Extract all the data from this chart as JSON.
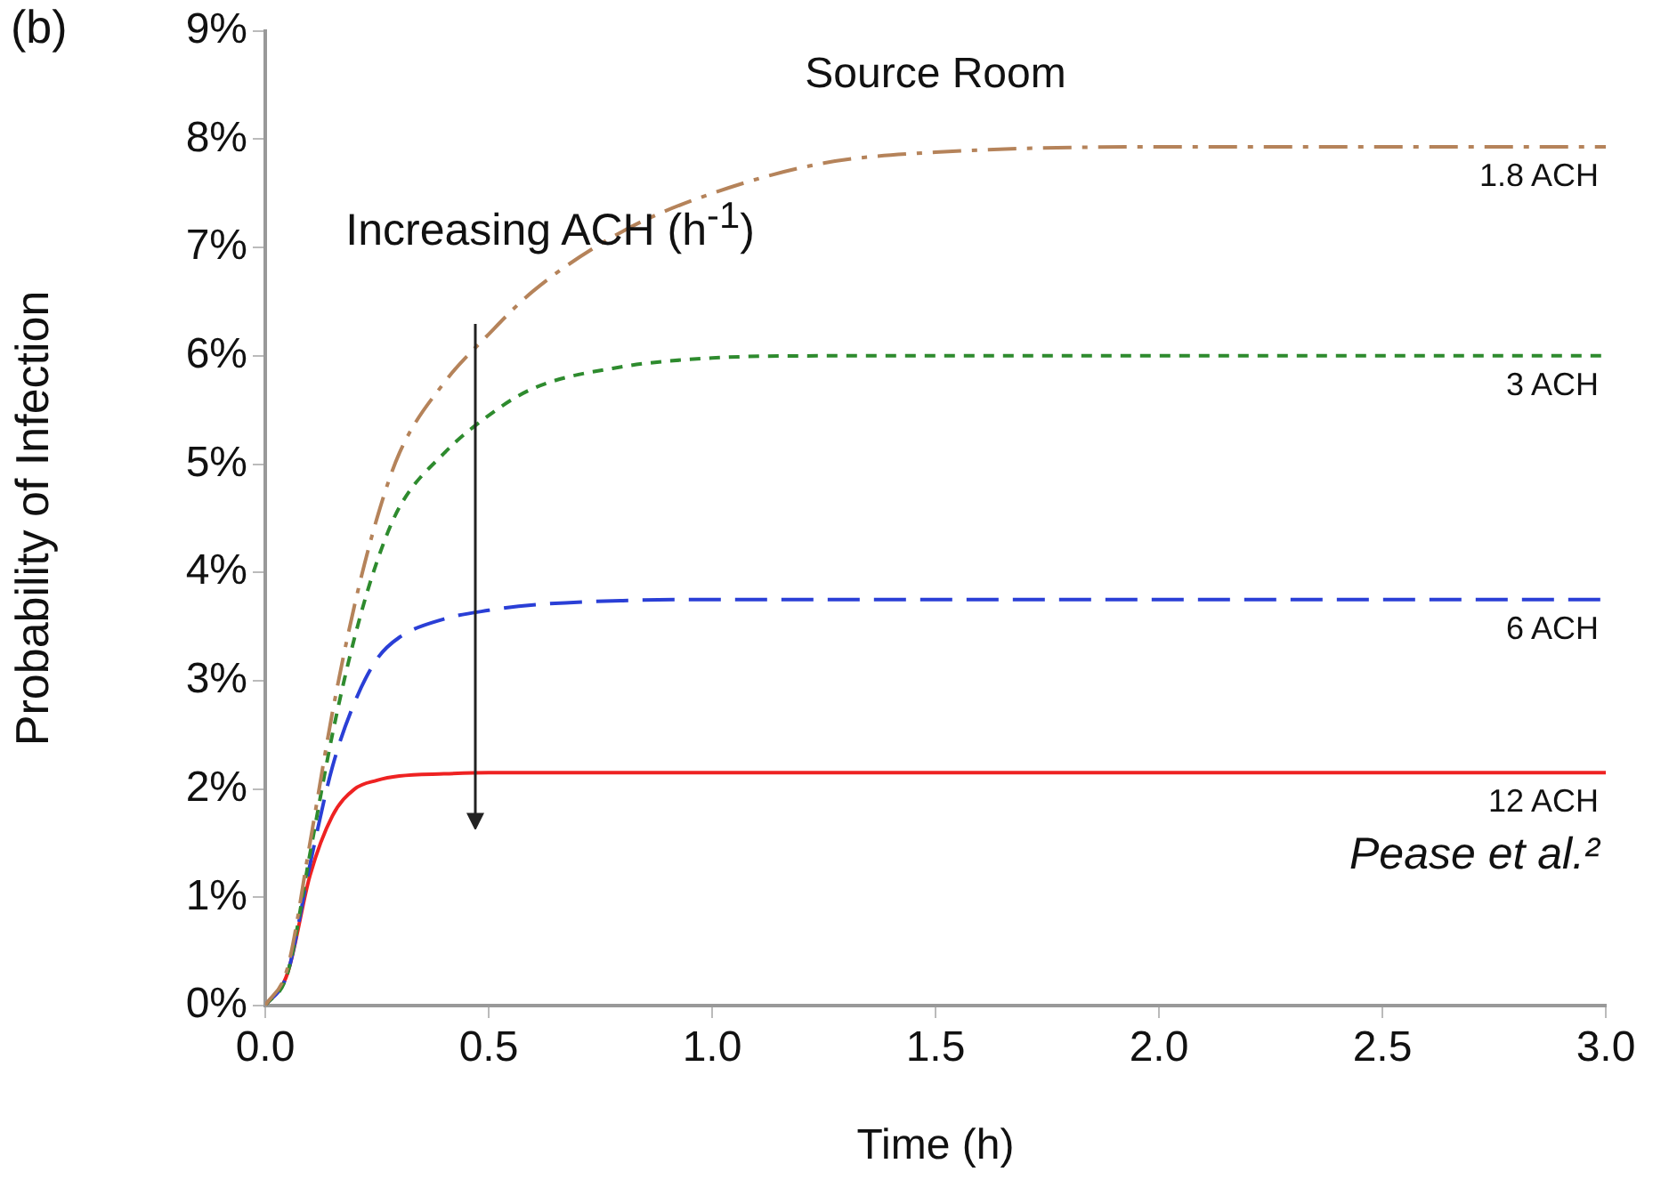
{
  "chart_data": {
    "type": "line",
    "title": "Source Room",
    "xlabel": "Time (h)",
    "ylabel": "Probability of Infection",
    "annotations": [
      "(b)",
      "Increasing ACH (h$^{-1}$)",
      "Pease et al.²"
    ],
    "x": [
      0,
      0.05,
      0.1,
      0.15,
      0.2,
      0.25,
      0.3,
      0.4,
      0.5,
      0.6,
      0.8,
      1.0,
      1.25,
      1.5,
      2.0,
      2.5,
      3.0
    ],
    "series": [
      {
        "name": "1.8 ACH",
        "color": "#b5835a",
        "line_style": "dashdot",
        "values": [
          0,
          0.35,
          1.5,
          2.7,
          3.7,
          4.5,
          5.1,
          5.75,
          6.2,
          6.6,
          7.15,
          7.5,
          7.78,
          7.88,
          7.93,
          7.93,
          7.93
        ]
      },
      {
        "name": "3 ACH",
        "color": "#2e8b2e",
        "line_style": "dotted",
        "values": [
          0,
          0.3,
          1.4,
          2.5,
          3.4,
          4.1,
          4.6,
          5.1,
          5.45,
          5.7,
          5.9,
          5.98,
          6.0,
          6.0,
          6.0,
          6.0,
          6.0
        ]
      },
      {
        "name": "6 ACH",
        "color": "#2a3fd6",
        "line_style": "dashed",
        "values": [
          0,
          0.3,
          1.3,
          2.2,
          2.8,
          3.2,
          3.4,
          3.57,
          3.65,
          3.7,
          3.74,
          3.75,
          3.75,
          3.75,
          3.75,
          3.75,
          3.75
        ]
      },
      {
        "name": "12 ACH",
        "color": "#ee2222",
        "line_style": "solid",
        "values": [
          0,
          0.3,
          1.2,
          1.75,
          2.0,
          2.08,
          2.12,
          2.14,
          2.15,
          2.15,
          2.15,
          2.15,
          2.15,
          2.15,
          2.15,
          2.15,
          2.15
        ]
      }
    ],
    "xlim": [
      0,
      3
    ],
    "xticks": [
      {
        "value": 0,
        "label": "0.0"
      },
      0.5,
      {
        "value": 1,
        "label": "1.0"
      },
      1.5,
      {
        "value": 2,
        "label": "2.0"
      },
      2.5,
      {
        "value": 3,
        "label": "3.0"
      }
    ],
    "ylim": [
      0,
      9
    ],
    "yticks": [
      {
        "value": 0,
        "label": "0%"
      },
      {
        "value": 1,
        "label": "1%"
      },
      {
        "value": 2,
        "label": "2%"
      },
      {
        "value": 3,
        "label": "3%"
      },
      {
        "value": 4,
        "label": "4%"
      },
      {
        "value": 5,
        "label": "5%"
      },
      {
        "value": 6,
        "label": "6%"
      },
      {
        "value": 7,
        "label": "7%"
      },
      {
        "value": 8,
        "label": "8%"
      },
      {
        "value": 9,
        "label": "9%"
      }
    ],
    "grid": false,
    "legend": false,
    "marker": "none"
  }
}
